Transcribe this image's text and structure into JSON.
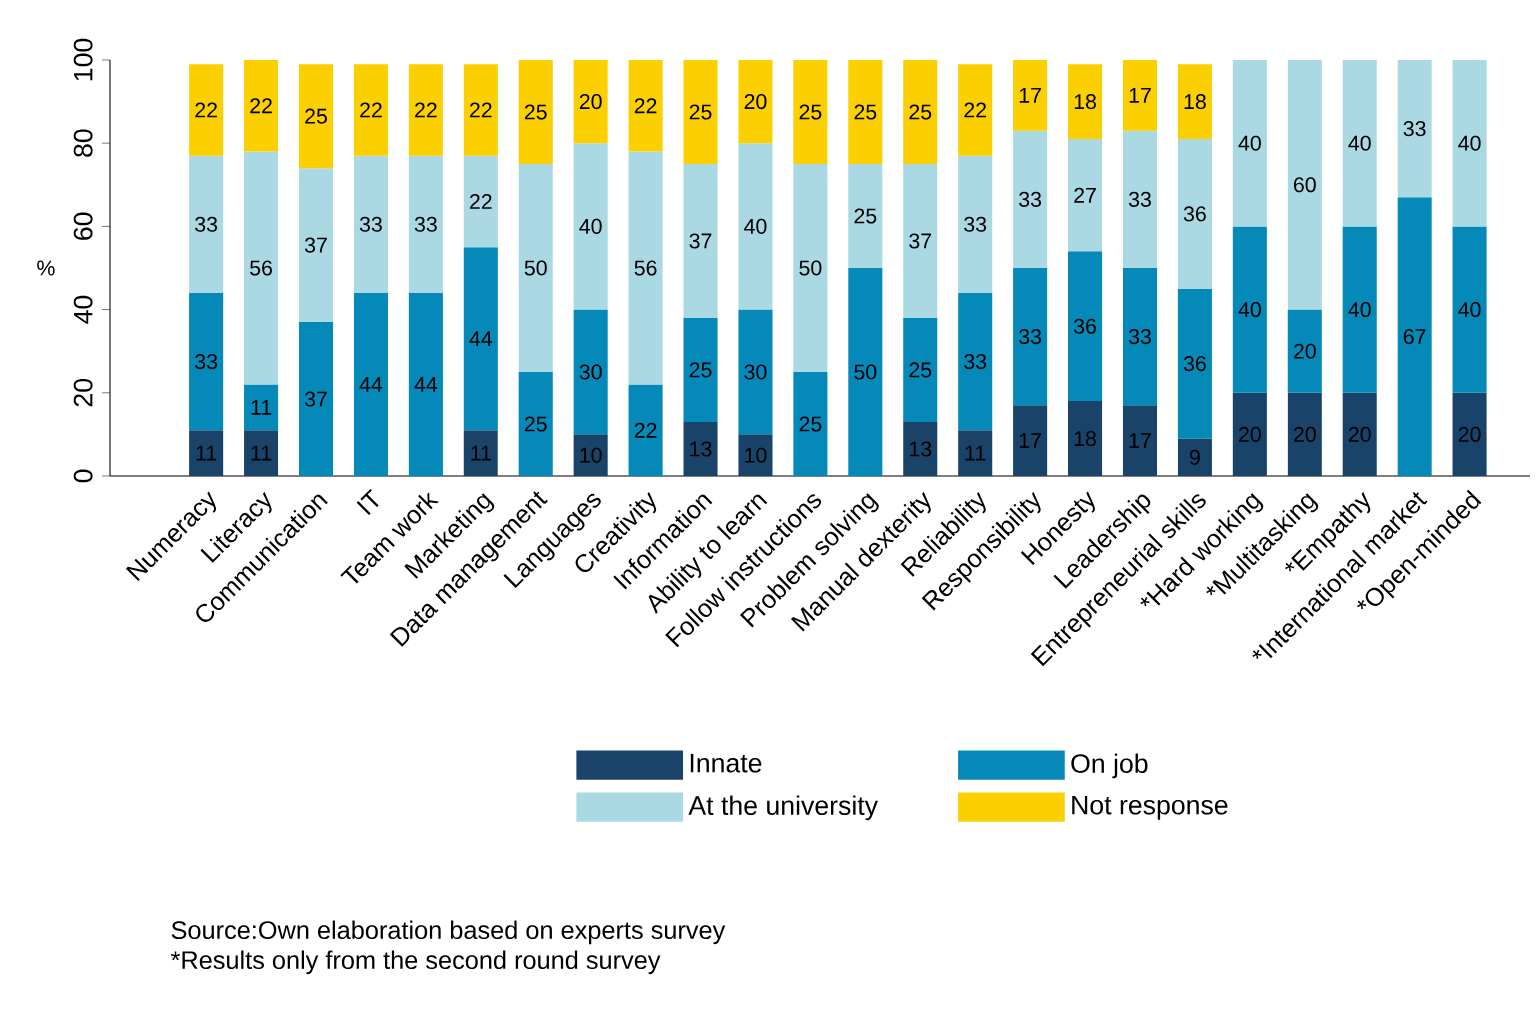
{
  "chart_data": {
    "type": "bar",
    "stacked": true,
    "ylabel": "%",
    "categories": [
      "Numeracy",
      "Literacy",
      "Communication",
      "IT",
      "Team work",
      "Marketing",
      "Data management",
      "Languages",
      "Creativity",
      "Information",
      "Ability to learn",
      "Follow instructions",
      "Problem solving",
      "Manual dexterity",
      "Reliability",
      "Responsibility",
      "Honesty",
      "Leadership",
      "Entrepreneurial skills",
      "*Hard working",
      "*Multitasking",
      "*Empathy",
      "*International market",
      "*Open-minded"
    ],
    "series": [
      {
        "name": "Innate",
        "color": "#1a4369",
        "values": [
          11,
          11,
          null,
          null,
          null,
          11,
          null,
          10,
          null,
          13,
          10,
          null,
          null,
          13,
          11,
          17,
          18,
          17,
          9,
          20,
          20,
          20,
          null,
          20
        ]
      },
      {
        "name": "On job",
        "color": "#0489b8",
        "values": [
          33,
          11,
          37,
          44,
          44,
          44,
          25,
          30,
          22,
          25,
          30,
          25,
          50,
          25,
          33,
          33,
          36,
          33,
          36,
          40,
          20,
          40,
          67,
          40
        ]
      },
      {
        "name": "At the university",
        "color": "#aad8e3",
        "values": [
          33,
          56,
          37,
          33,
          33,
          22,
          50,
          40,
          56,
          37,
          40,
          50,
          25,
          37,
          33,
          33,
          27,
          33,
          36,
          40,
          60,
          40,
          33,
          40
        ]
      },
      {
        "name": "Not response",
        "color": "#fbcf00",
        "values": [
          22,
          22,
          25,
          22,
          22,
          22,
          25,
          20,
          22,
          25,
          20,
          25,
          25,
          25,
          22,
          17,
          18,
          17,
          18,
          null,
          null,
          null,
          null,
          null
        ]
      }
    ],
    "ylim": [
      0,
      100
    ],
    "yticks": [
      0,
      20,
      40,
      60,
      80,
      100
    ],
    "data_labels": true,
    "legend": "bottom",
    "annotations": [
      "Source:Own elaboration based on experts survey",
      "*Results only from the second round survey"
    ]
  }
}
